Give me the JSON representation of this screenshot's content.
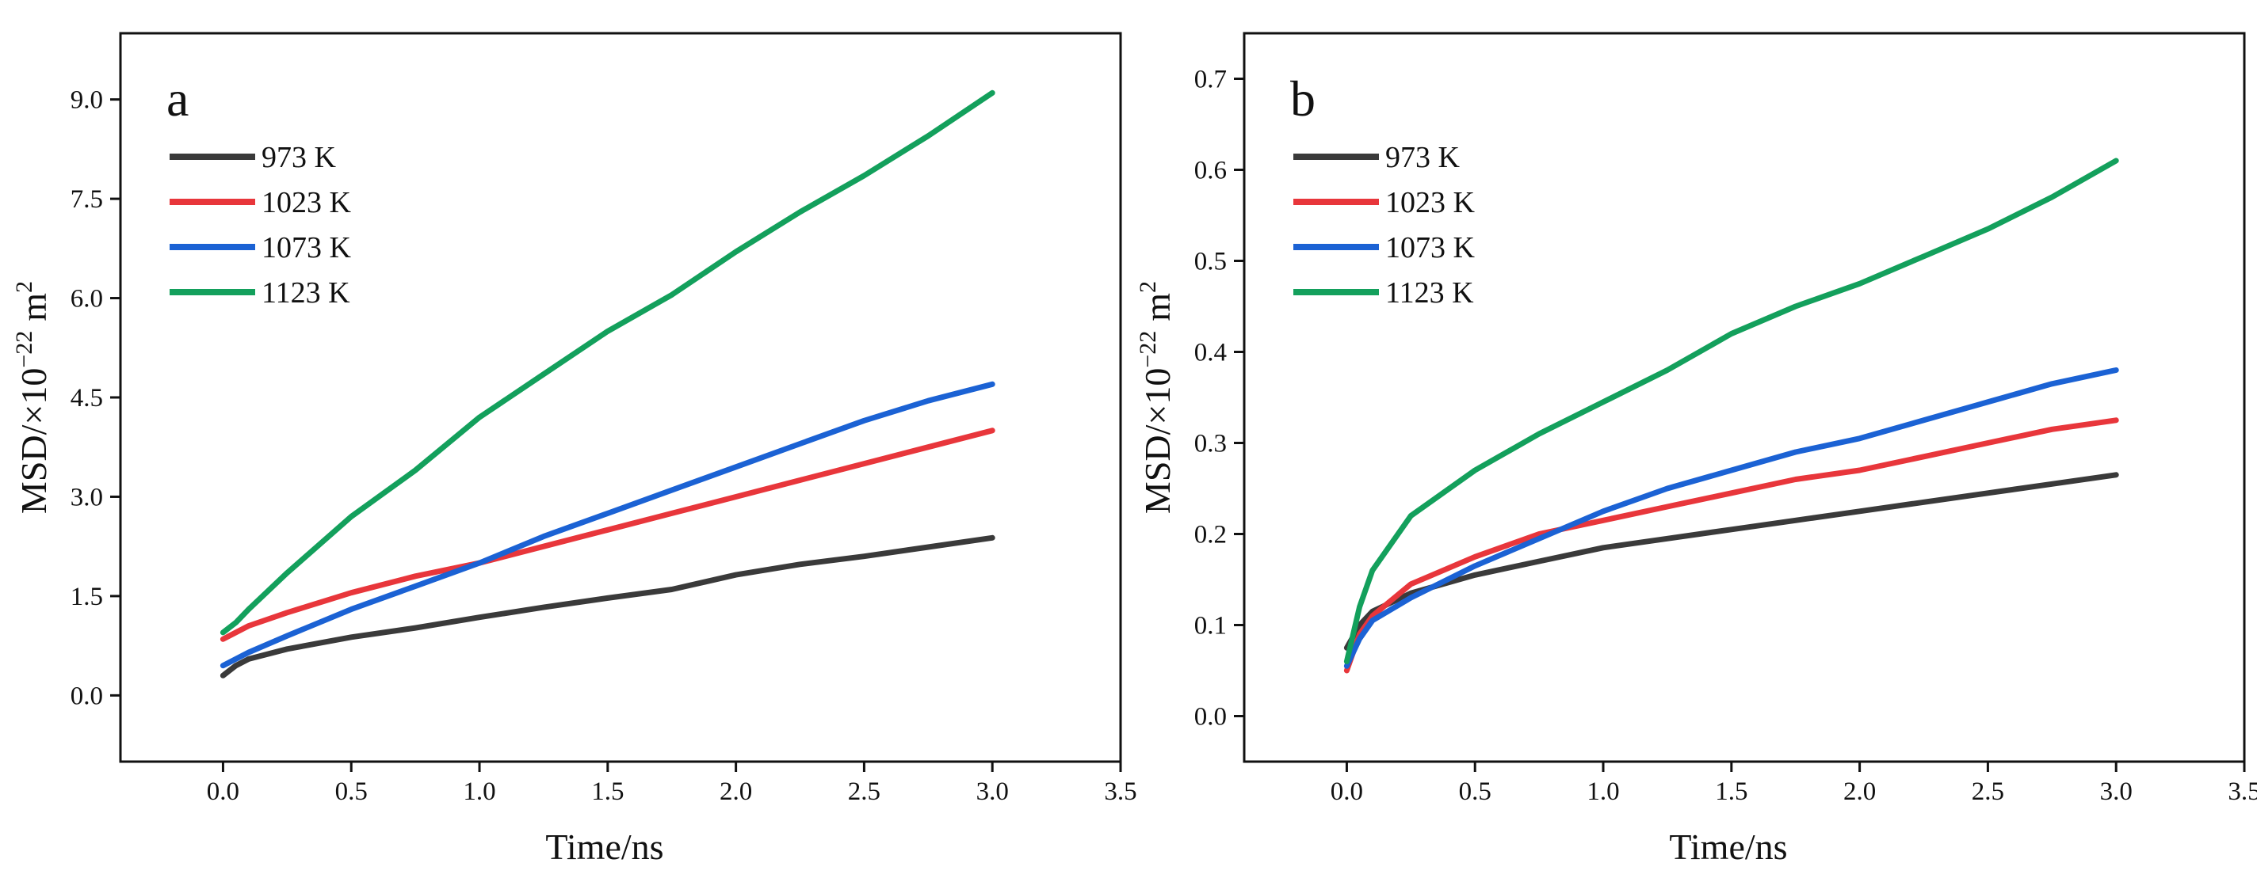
{
  "figure": {
    "panels": [
      {
        "label": "a",
        "xlabel": "Time/ns",
        "ylabel_main": "MSD/×10",
        "ylabel_exp": "−22",
        "ylabel_unit": "m",
        "ylabel_unit_exp": "2"
      },
      {
        "label": "b",
        "xlabel": "Time/ns",
        "ylabel_main": "MSD/×10",
        "ylabel_exp": "−22",
        "ylabel_unit": "m",
        "ylabel_unit_exp": "2"
      }
    ]
  },
  "chart_data": [
    {
      "type": "line",
      "panel": "a",
      "xlabel": "Time/ns",
      "ylabel": "MSD/×10^−22 m^2",
      "xlim": [
        -0.4,
        3.5
      ],
      "ylim": [
        -1.0,
        10.0
      ],
      "xticks": [
        0.0,
        0.5,
        1.0,
        1.5,
        2.0,
        2.5,
        3.0,
        3.5
      ],
      "xtick_labels": [
        "0.0",
        "0.5",
        "1.0",
        "1.5",
        "2.0",
        "2.5",
        "3.0",
        "3.5"
      ],
      "yticks": [
        0.0,
        1.5,
        3.0,
        4.5,
        6.0,
        7.5,
        9.0
      ],
      "ytick_labels": [
        "0.0",
        "1.5",
        "3.0",
        "4.5",
        "6.0",
        "7.5",
        "9.0"
      ],
      "legend_position": "top-left",
      "x": [
        0.0,
        0.05,
        0.1,
        0.25,
        0.5,
        0.75,
        1.0,
        1.25,
        1.5,
        1.75,
        2.0,
        2.25,
        2.5,
        2.75,
        3.0
      ],
      "series": [
        {
          "name": "973 K",
          "color": "#3a3a3a",
          "values": [
            0.3,
            0.45,
            0.55,
            0.7,
            0.88,
            1.02,
            1.18,
            1.33,
            1.47,
            1.6,
            1.82,
            1.98,
            2.1,
            2.24,
            2.38
          ]
        },
        {
          "name": "1023 K",
          "color": "#e8363b",
          "values": [
            0.85,
            0.95,
            1.05,
            1.25,
            1.55,
            1.8,
            2.0,
            2.25,
            2.5,
            2.75,
            3.0,
            3.25,
            3.5,
            3.75,
            4.0
          ]
        },
        {
          "name": "1073 K",
          "color": "#1b62d4",
          "values": [
            0.45,
            0.55,
            0.65,
            0.9,
            1.3,
            1.65,
            2.0,
            2.4,
            2.75,
            3.1,
            3.45,
            3.8,
            4.15,
            4.45,
            4.7
          ]
        },
        {
          "name": "1123 K",
          "color": "#13a05c",
          "values": [
            0.95,
            1.1,
            1.3,
            1.85,
            2.7,
            3.4,
            4.2,
            4.85,
            5.5,
            6.05,
            6.7,
            7.3,
            7.85,
            8.45,
            9.1
          ]
        }
      ]
    },
    {
      "type": "line",
      "panel": "b",
      "xlabel": "Time/ns",
      "ylabel": "MSD/×10^−22 m^2",
      "xlim": [
        -0.4,
        3.5
      ],
      "ylim": [
        -0.05,
        0.75
      ],
      "xticks": [
        0.0,
        0.5,
        1.0,
        1.5,
        2.0,
        2.5,
        3.0,
        3.5
      ],
      "xtick_labels": [
        "0.0",
        "0.5",
        "1.0",
        "1.5",
        "2.0",
        "2.5",
        "3.0",
        "3.5"
      ],
      "yticks": [
        0.0,
        0.1,
        0.2,
        0.3,
        0.4,
        0.5,
        0.6,
        0.7
      ],
      "ytick_labels": [
        "0.0",
        "0.1",
        "0.2",
        "0.3",
        "0.4",
        "0.5",
        "0.6",
        "0.7"
      ],
      "legend_position": "top-left",
      "x": [
        0.0,
        0.05,
        0.1,
        0.25,
        0.5,
        0.75,
        1.0,
        1.25,
        1.5,
        1.75,
        2.0,
        2.25,
        2.5,
        2.75,
        3.0
      ],
      "series": [
        {
          "name": "973 K",
          "color": "#3a3a3a",
          "values": [
            0.075,
            0.1,
            0.115,
            0.135,
            0.155,
            0.17,
            0.185,
            0.195,
            0.205,
            0.215,
            0.225,
            0.235,
            0.245,
            0.255,
            0.265
          ]
        },
        {
          "name": "1023 K",
          "color": "#e8363b",
          "values": [
            0.05,
            0.09,
            0.11,
            0.145,
            0.175,
            0.2,
            0.215,
            0.23,
            0.245,
            0.26,
            0.27,
            0.285,
            0.3,
            0.315,
            0.325
          ]
        },
        {
          "name": "1073 K",
          "color": "#1b62d4",
          "values": [
            0.055,
            0.085,
            0.105,
            0.13,
            0.165,
            0.195,
            0.225,
            0.25,
            0.27,
            0.29,
            0.305,
            0.325,
            0.345,
            0.365,
            0.38
          ]
        },
        {
          "name": "1123 K",
          "color": "#13a05c",
          "values": [
            0.06,
            0.12,
            0.16,
            0.22,
            0.27,
            0.31,
            0.345,
            0.38,
            0.42,
            0.45,
            0.475,
            0.505,
            0.535,
            0.57,
            0.61
          ]
        }
      ]
    }
  ]
}
